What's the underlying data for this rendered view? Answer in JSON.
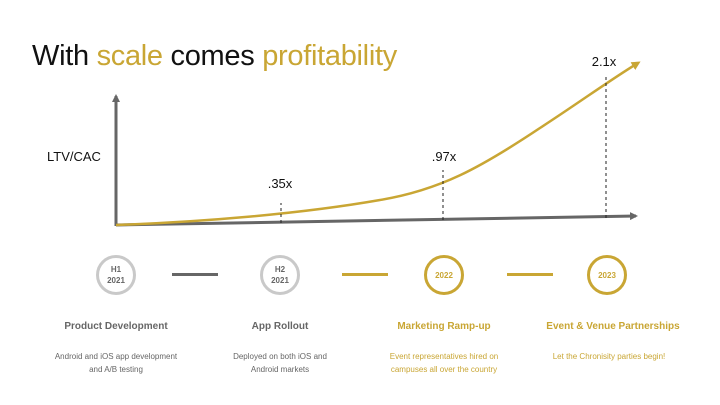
{
  "title": {
    "part1": "With ",
    "part2": "scale",
    "part3": " comes ",
    "part4": "profitability"
  },
  "colors": {
    "accent": "#c9a634",
    "axis": "#666666",
    "text": "#111111",
    "muted": "#666666",
    "circle_gray": "#c9c9c9"
  },
  "chart_data": {
    "type": "line",
    "ylabel": "LTV/CAC",
    "xlabel": "",
    "markers": [
      {
        "label": ".35x",
        "value": 0.35
      },
      {
        "label": ".97x",
        "value": 0.97
      },
      {
        "label": "2.1x",
        "value": 2.1
      }
    ]
  },
  "timeline": [
    {
      "line1": "H1",
      "line2": "2021",
      "title": "Product Development",
      "desc1": "Android and iOS app development",
      "desc2": "and A/B testing",
      "style": "gray"
    },
    {
      "line1": "H2",
      "line2": "2021",
      "title": "App Rollout",
      "desc1": "Deployed on both iOS and",
      "desc2": "Android markets",
      "style": "gray"
    },
    {
      "line1": "2022",
      "line2": "",
      "title": "Marketing Ramp-up",
      "desc1": "Event representatives hired on",
      "desc2": "campuses all over the country",
      "style": "gold"
    },
    {
      "line1": "2023",
      "line2": "",
      "title": "Event & Venue Partnerships",
      "desc1": "Let the Chronisity parties begin!",
      "desc2": "",
      "style": "gold"
    }
  ]
}
